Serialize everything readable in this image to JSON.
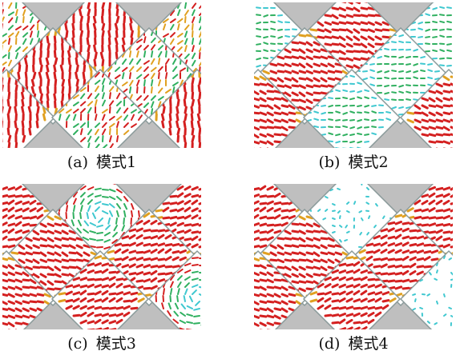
{
  "figure": {
    "panels": [
      {
        "label": "(a)",
        "title": "模式1",
        "pattern": [
          "mixed",
          "strong",
          "mixed",
          "strong",
          "mixed",
          "strong",
          "mixed",
          "strong",
          "mixed"
        ]
      },
      {
        "label": "(b)",
        "title": "模式2",
        "pattern": [
          "weak",
          "strong",
          "weak",
          "strong",
          "weak",
          "strong",
          "weak",
          "strong",
          "weak"
        ]
      },
      {
        "label": "(c)",
        "title": "模式3",
        "pattern": [
          "strong",
          "swirl",
          "strong",
          "strong",
          "strong",
          "strong",
          "strong",
          "swirl",
          "strong"
        ]
      },
      {
        "label": "(d)",
        "title": "模式4",
        "pattern": [
          "strong",
          "empty",
          "strong",
          "strong",
          "strong",
          "strong",
          "strong",
          "empty",
          "strong"
        ]
      }
    ],
    "colors": {
      "background": "#bfbfbf",
      "strong": "#d42020",
      "mid": "#e0a020",
      "green": "#30b060",
      "cyan": "#40c8d0",
      "tile": "#ffffff"
    }
  }
}
